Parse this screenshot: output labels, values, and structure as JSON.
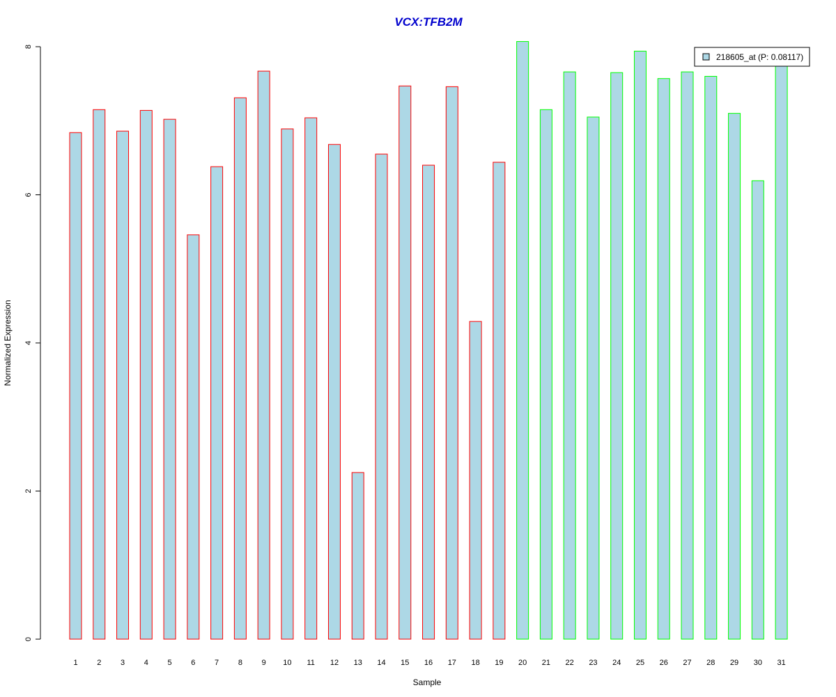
{
  "chart_data": {
    "type": "bar",
    "title": "VCX:TFB2M",
    "xlabel": "Sample",
    "ylabel": "Normalized Expression",
    "ylim": [
      0,
      8
    ],
    "yticks": [
      0,
      2,
      4,
      6,
      8
    ],
    "categories": [
      "1",
      "2",
      "3",
      "4",
      "5",
      "6",
      "7",
      "8",
      "9",
      "10",
      "11",
      "12",
      "13",
      "14",
      "15",
      "16",
      "17",
      "18",
      "19",
      "20",
      "21",
      "22",
      "23",
      "24",
      "25",
      "26",
      "27",
      "28",
      "29",
      "30",
      "31"
    ],
    "series": [
      {
        "name": "218605_at (P: 0.08117)",
        "values": [
          6.84,
          7.15,
          6.86,
          7.14,
          7.02,
          5.46,
          6.38,
          7.31,
          7.67,
          6.89,
          7.04,
          6.68,
          2.25,
          6.55,
          7.47,
          6.4,
          7.46,
          4.29,
          6.44,
          8.07,
          7.15,
          7.66,
          7.05,
          7.65,
          7.94,
          7.57,
          7.66,
          7.6,
          7.1,
          6.19,
          7.77
        ]
      }
    ],
    "bar_fill": "#add8e6",
    "group_colors": [
      "#ff0000",
      "#00ff00"
    ],
    "group_split_after": 19,
    "title_color": "#0000cd",
    "legend_position": "top-right",
    "grid": false
  }
}
